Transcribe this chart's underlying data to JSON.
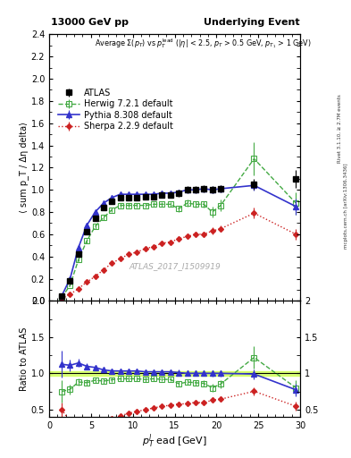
{
  "title_left": "13000 GeV pp",
  "title_right": "Underlying Event",
  "watermark": "ATLAS_2017_I1509919",
  "right_label1": "Rivet 3.1.10, ≥ 2.7M events",
  "right_label2": "mcplots.cern.ch [arXiv:1306.3436]",
  "ylabel_main": "⟨ sum p_T / Δη delta⟩",
  "ylabel_ratio": "Ratio to ATLAS",
  "xlabel": "p$_T^l$ ead [GeV]",
  "ylim_main": [
    0.0,
    2.4
  ],
  "ylim_ratio": [
    0.4,
    2.0
  ],
  "xlim": [
    0,
    30
  ],
  "yticks_main": [
    0.0,
    0.2,
    0.4,
    0.6,
    0.8,
    1.0,
    1.2,
    1.4,
    1.6,
    1.8,
    2.0,
    2.2,
    2.4
  ],
  "yticks_ratio": [
    0.5,
    1.0,
    1.5,
    2.0
  ],
  "xticks": [
    0,
    5,
    10,
    15,
    20,
    25,
    30
  ],
  "atlas_x": [
    1.5,
    2.5,
    3.5,
    4.5,
    5.5,
    6.5,
    7.5,
    8.5,
    9.5,
    10.5,
    11.5,
    12.5,
    13.5,
    14.5,
    15.5,
    16.5,
    17.5,
    18.5,
    19.5,
    20.5,
    24.5,
    29.5
  ],
  "atlas_y": [
    0.04,
    0.18,
    0.42,
    0.62,
    0.74,
    0.84,
    0.9,
    0.93,
    0.93,
    0.93,
    0.94,
    0.94,
    0.95,
    0.95,
    0.97,
    1.0,
    1.0,
    1.01,
    1.0,
    1.01,
    1.05,
    1.1
  ],
  "atlas_yerr": [
    0.005,
    0.01,
    0.015,
    0.02,
    0.02,
    0.02,
    0.02,
    0.02,
    0.02,
    0.02,
    0.02,
    0.02,
    0.02,
    0.02,
    0.03,
    0.03,
    0.03,
    0.03,
    0.03,
    0.03,
    0.05,
    0.08
  ],
  "herwig_x": [
    1.5,
    2.5,
    3.5,
    4.5,
    5.5,
    6.5,
    7.5,
    8.5,
    9.5,
    10.5,
    11.5,
    12.5,
    13.5,
    14.5,
    15.5,
    16.5,
    17.5,
    18.5,
    19.5,
    20.5,
    24.5,
    29.5
  ],
  "herwig_y": [
    0.03,
    0.14,
    0.37,
    0.54,
    0.67,
    0.75,
    0.82,
    0.86,
    0.86,
    0.86,
    0.86,
    0.87,
    0.87,
    0.87,
    0.83,
    0.88,
    0.87,
    0.87,
    0.8,
    0.86,
    1.28,
    0.88
  ],
  "herwig_yerr": [
    0.005,
    0.01,
    0.015,
    0.02,
    0.02,
    0.02,
    0.02,
    0.02,
    0.02,
    0.02,
    0.02,
    0.02,
    0.02,
    0.02,
    0.03,
    0.03,
    0.03,
    0.03,
    0.05,
    0.05,
    0.15,
    0.1
  ],
  "pythia_x": [
    1.5,
    2.5,
    3.5,
    4.5,
    5.5,
    6.5,
    7.5,
    8.5,
    9.5,
    10.5,
    11.5,
    12.5,
    13.5,
    14.5,
    15.5,
    16.5,
    17.5,
    18.5,
    19.5,
    20.5,
    24.5,
    29.5
  ],
  "pythia_y": [
    0.045,
    0.2,
    0.48,
    0.68,
    0.8,
    0.88,
    0.93,
    0.96,
    0.96,
    0.96,
    0.96,
    0.96,
    0.97,
    0.97,
    0.98,
    1.0,
    1.0,
    1.01,
    1.0,
    1.01,
    1.04,
    0.85
  ],
  "pythia_yerr": [
    0.005,
    0.01,
    0.015,
    0.02,
    0.02,
    0.02,
    0.02,
    0.02,
    0.02,
    0.02,
    0.02,
    0.02,
    0.02,
    0.02,
    0.02,
    0.02,
    0.02,
    0.02,
    0.03,
    0.03,
    0.05,
    0.07
  ],
  "sherpa_x": [
    1.5,
    2.5,
    3.5,
    4.5,
    5.5,
    6.5,
    7.5,
    8.5,
    9.5,
    10.5,
    11.5,
    12.5,
    13.5,
    14.5,
    15.5,
    16.5,
    17.5,
    18.5,
    19.5,
    20.5,
    24.5,
    29.5
  ],
  "sherpa_y": [
    0.02,
    0.06,
    0.11,
    0.17,
    0.22,
    0.28,
    0.34,
    0.38,
    0.42,
    0.44,
    0.47,
    0.49,
    0.52,
    0.53,
    0.56,
    0.58,
    0.6,
    0.6,
    0.63,
    0.65,
    0.79,
    0.6
  ],
  "sherpa_yerr": [
    0.003,
    0.005,
    0.008,
    0.01,
    0.01,
    0.01,
    0.01,
    0.01,
    0.01,
    0.01,
    0.01,
    0.01,
    0.01,
    0.01,
    0.02,
    0.02,
    0.02,
    0.02,
    0.03,
    0.03,
    0.05,
    0.05
  ],
  "atlas_color": "black",
  "herwig_color": "#44aa44",
  "pythia_color": "#3333cc",
  "sherpa_color": "#cc2222",
  "band_color": "#ccff44",
  "band_alpha": 0.7,
  "band_ylow": 0.965,
  "band_yhigh": 1.035
}
